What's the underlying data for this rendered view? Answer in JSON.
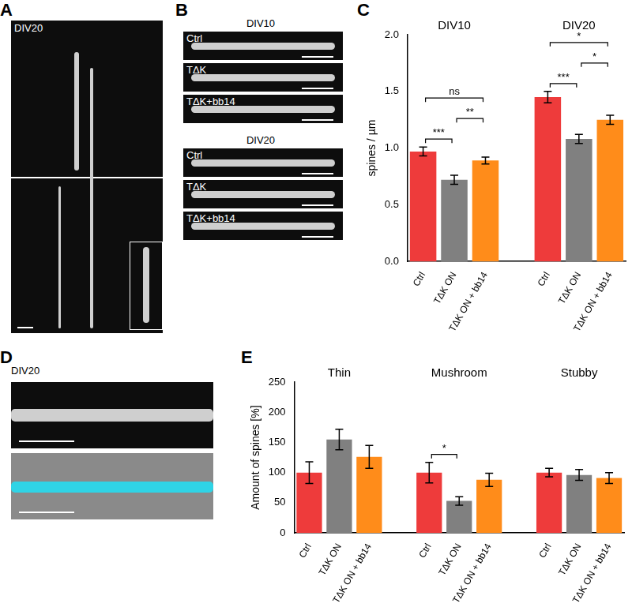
{
  "letters": [
    "A",
    "B",
    "C",
    "D",
    "E"
  ],
  "images": {
    "A": {
      "label": "DIV20"
    },
    "B": [
      {
        "label": "DIV10",
        "rows": [
          "Ctrl",
          "TΔK",
          "TΔK+bb14"
        ]
      },
      {
        "label": "DIV20",
        "rows": [
          "Ctrl",
          "TΔK",
          "TΔK+bb14"
        ]
      }
    ],
    "D": {
      "label": "DIV20"
    }
  },
  "chart_data": [
    {
      "type": "bar",
      "categories": [
        "Ctrl",
        "TΔK ON",
        "TΔK ON + bb14",
        null,
        "Ctrl",
        "TΔK ON",
        "TΔK ON + bb14"
      ],
      "group_labels": [
        "DIV10",
        "DIV20"
      ],
      "values": [
        0.97,
        0.72,
        0.89,
        null,
        1.45,
        1.08,
        1.25
      ],
      "errors": [
        0.04,
        0.04,
        0.03,
        null,
        0.05,
        0.04,
        0.04
      ],
      "colors": [
        "#ee3b3b",
        "#808080",
        "#ff8c1a",
        null,
        "#ee3b3b",
        "#808080",
        "#ff8c1a"
      ],
      "y_label": "spines / µm",
      "ylim": [
        0,
        2
      ],
      "yticks": [
        {
          "value": 0,
          "label": "0.0"
        },
        {
          "value": 0.5,
          "label": "0.5"
        },
        {
          "value": 1,
          "label": "1.0"
        },
        {
          "value": 1.5,
          "label": "1.5"
        },
        {
          "value": 2,
          "label": "2.0"
        }
      ],
      "grid": false,
      "annotations": [
        {
          "from": 0,
          "to": 1,
          "text": "***"
        },
        {
          "from": 1,
          "to": 2,
          "text": "**"
        },
        {
          "from": 0,
          "to": 2,
          "text": "ns"
        },
        {
          "from": 4,
          "to": 5,
          "text": "***"
        },
        {
          "from": 5,
          "to": 6,
          "text": "*"
        },
        {
          "from": 4,
          "to": 6,
          "text": "*"
        }
      ]
    },
    {
      "type": "bar",
      "categories": [
        "Ctrl",
        "TΔK ON",
        "TΔK ON + bb14",
        null,
        "Ctrl",
        "TΔK ON",
        "TΔK ON + bb14",
        null,
        "Ctrl",
        "TΔK ON",
        "TΔK ON + bb14"
      ],
      "group_labels": [
        "Thin",
        "Mushroom",
        "Stubby"
      ],
      "values": [
        100,
        155,
        126,
        null,
        100,
        53,
        88,
        null,
        100,
        96,
        91
      ],
      "errors": [
        18,
        17,
        19,
        null,
        17,
        7,
        11,
        null,
        7,
        9,
        9
      ],
      "colors": [
        "#ee3b3b",
        "#808080",
        "#ff8c1a",
        null,
        "#ee3b3b",
        "#808080",
        "#ff8c1a",
        null,
        "#ee3b3b",
        "#808080",
        "#ff8c1a"
      ],
      "y_label": "Amount of spines [%]",
      "ylim": [
        0,
        250
      ],
      "yticks": [
        0,
        50,
        100,
        150,
        200,
        250
      ],
      "grid": false,
      "annotations": [
        {
          "from": 4,
          "to": 5,
          "text": "*"
        }
      ]
    }
  ]
}
